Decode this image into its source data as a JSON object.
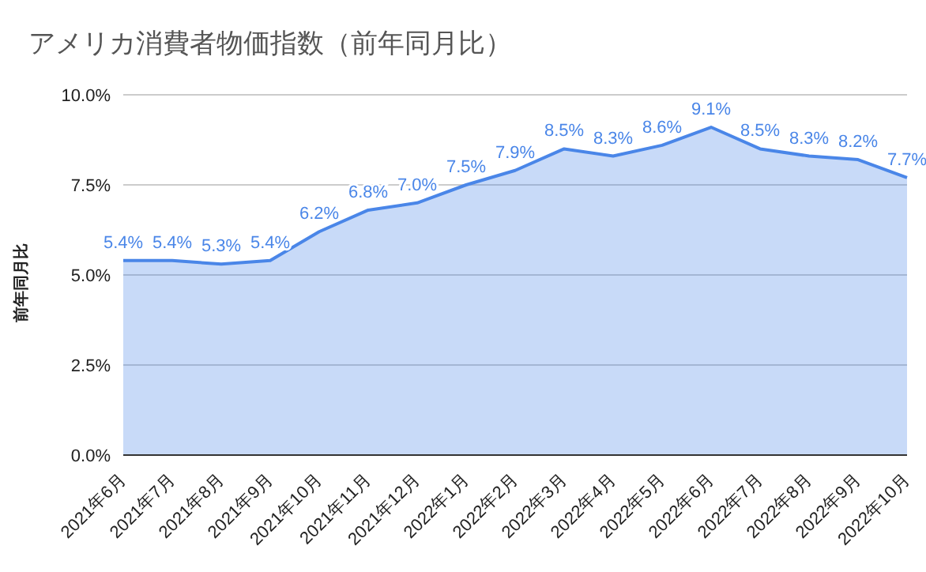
{
  "chart_data": {
    "type": "area",
    "title": "アメリカ消費者物価指数（前年同月比）",
    "ylabel": "前年同月比",
    "categories": [
      "2021年6月",
      "2021年7月",
      "2021年8月",
      "2021年9月",
      "2021年10月",
      "2021年11月",
      "2021年12月",
      "2022年1月",
      "2022年2月",
      "2022年3月",
      "2022年4月",
      "2022年5月",
      "2022年6月",
      "2022年7月",
      "2022年8月",
      "2022年9月",
      "2022年10月"
    ],
    "series": [
      {
        "color": "#4a86e8",
        "values": [
          5.4,
          5.4,
          5.3,
          5.4,
          6.2,
          6.8,
          7.0,
          7.5,
          7.9,
          8.5,
          8.3,
          8.6,
          9.1,
          8.5,
          8.3,
          8.2,
          7.7
        ],
        "value_labels": [
          "5.4%",
          "5.4%",
          "5.3%",
          "5.4%",
          "6.2%",
          "6.8%",
          "7.0%",
          "7.5%",
          "7.9%",
          "8.5%",
          "8.3%",
          "8.6%",
          "9.1%",
          "8.5%",
          "8.3%",
          "8.2%",
          "7.7%"
        ]
      }
    ],
    "ylim": [
      0,
      10
    ],
    "yticks": [
      {
        "value": 0,
        "label": "0.0%"
      },
      {
        "value": 2.5,
        "label": "2.5%"
      },
      {
        "value": 5,
        "label": "5.0%"
      },
      {
        "value": 7.5,
        "label": "7.5%"
      },
      {
        "value": 10,
        "label": "10.0%"
      }
    ],
    "grid": "y",
    "legend": false,
    "marker": "none"
  }
}
